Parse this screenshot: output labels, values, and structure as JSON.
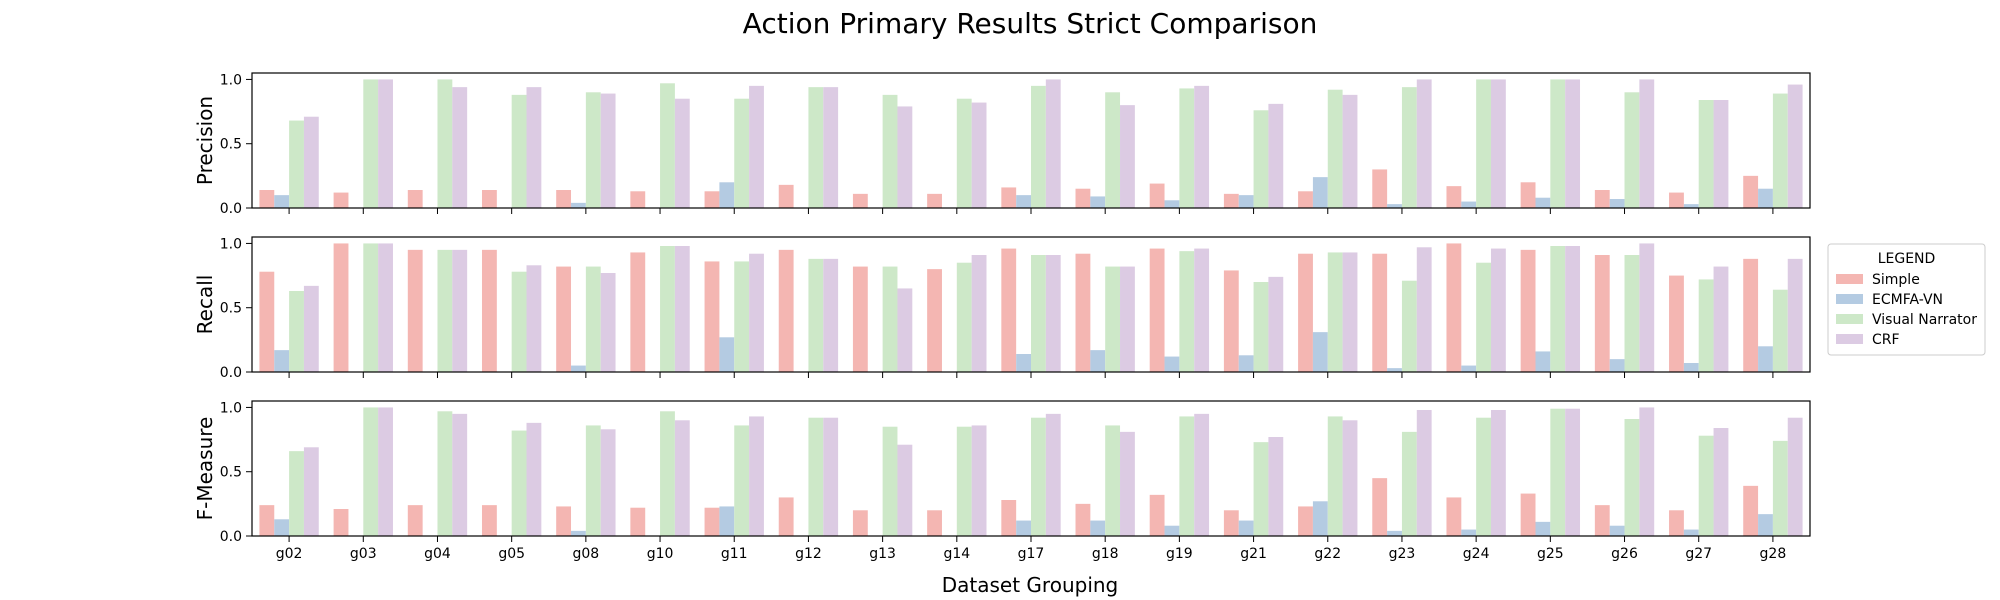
{
  "chart_data": {
    "type": "bar",
    "title": "Action Primary Results Strict Comparison",
    "xlabel": "Dataset Grouping",
    "categories": [
      "g02",
      "g03",
      "g04",
      "g05",
      "g08",
      "g10",
      "g11",
      "g12",
      "g13",
      "g14",
      "g17",
      "g18",
      "g19",
      "g21",
      "g22",
      "g23",
      "g24",
      "g25",
      "g26",
      "g27",
      "g28"
    ],
    "ylim": [
      0,
      1.05
    ],
    "yticks": [
      "0.0",
      "0.5",
      "1.0"
    ],
    "grid": false,
    "legend": {
      "title": "LEGEND",
      "placement": "right",
      "entries": [
        "Simple",
        "ECMFA-VN",
        "Visual Narrator",
        "CRF"
      ],
      "colors": [
        "#f4b6b2",
        "#b4cbe2",
        "#cde8c8",
        "#dccbe3"
      ]
    },
    "panels": [
      {
        "ylabel": "Precision",
        "series": [
          {
            "name": "Simple",
            "values": [
              0.14,
              0.12,
              0.14,
              0.14,
              0.14,
              0.13,
              0.13,
              0.18,
              0.11,
              0.11,
              0.16,
              0.15,
              0.19,
              0.11,
              0.13,
              0.3,
              0.17,
              0.2,
              0.14,
              0.12,
              0.25
            ]
          },
          {
            "name": "ECMFA-VN",
            "values": [
              0.1,
              0,
              0,
              0,
              0.04,
              0,
              0.2,
              0,
              0,
              0,
              0.1,
              0.09,
              0.06,
              0.1,
              0.24,
              0.03,
              0.05,
              0.08,
              0.07,
              0.03,
              0.15
            ]
          },
          {
            "name": "Visual Narrator",
            "values": [
              0.68,
              1.0,
              1.0,
              0.88,
              0.9,
              0.97,
              0.85,
              0.94,
              0.88,
              0.85,
              0.95,
              0.9,
              0.93,
              0.76,
              0.92,
              0.94,
              1.0,
              1.0,
              0.9,
              0.84,
              0.89
            ]
          },
          {
            "name": "CRF",
            "values": [
              0.71,
              1.0,
              0.94,
              0.94,
              0.89,
              0.85,
              0.95,
              0.94,
              0.79,
              0.82,
              1.0,
              0.8,
              0.95,
              0.81,
              0.88,
              1.0,
              1.0,
              1.0,
              1.0,
              0.84,
              0.96
            ]
          }
        ]
      },
      {
        "ylabel": "Recall",
        "series": [
          {
            "name": "Simple",
            "values": [
              0.78,
              1.0,
              0.95,
              0.95,
              0.82,
              0.93,
              0.86,
              0.95,
              0.82,
              0.8,
              0.96,
              0.92,
              0.96,
              0.79,
              0.92,
              0.92,
              1.0,
              0.95,
              0.91,
              0.75,
              0.88
            ]
          },
          {
            "name": "ECMFA-VN",
            "values": [
              0.17,
              0,
              0,
              0,
              0.05,
              0,
              0.27,
              0,
              0,
              0,
              0.14,
              0.17,
              0.12,
              0.13,
              0.31,
              0.03,
              0.05,
              0.16,
              0.1,
              0.07,
              0.2
            ]
          },
          {
            "name": "Visual Narrator",
            "values": [
              0.63,
              1.0,
              0.95,
              0.78,
              0.82,
              0.98,
              0.86,
              0.88,
              0.82,
              0.85,
              0.91,
              0.82,
              0.94,
              0.7,
              0.93,
              0.71,
              0.85,
              0.98,
              0.91,
              0.72,
              0.64
            ]
          },
          {
            "name": "CRF",
            "values": [
              0.67,
              1.0,
              0.95,
              0.83,
              0.77,
              0.98,
              0.92,
              0.88,
              0.65,
              0.91,
              0.91,
              0.82,
              0.96,
              0.74,
              0.93,
              0.97,
              0.96,
              0.98,
              1.0,
              0.82,
              0.88
            ]
          }
        ]
      },
      {
        "ylabel": "F-Measure",
        "series": [
          {
            "name": "Simple",
            "values": [
              0.24,
              0.21,
              0.24,
              0.24,
              0.23,
              0.22,
              0.22,
              0.3,
              0.2,
              0.2,
              0.28,
              0.25,
              0.32,
              0.2,
              0.23,
              0.45,
              0.3,
              0.33,
              0.24,
              0.2,
              0.39
            ]
          },
          {
            "name": "ECMFA-VN",
            "values": [
              0.13,
              0,
              0,
              0,
              0.04,
              0,
              0.23,
              0,
              0,
              0,
              0.12,
              0.12,
              0.08,
              0.12,
              0.27,
              0.04,
              0.05,
              0.11,
              0.08,
              0.05,
              0.17
            ]
          },
          {
            "name": "Visual Narrator",
            "values": [
              0.66,
              1.0,
              0.97,
              0.82,
              0.86,
              0.97,
              0.86,
              0.92,
              0.85,
              0.85,
              0.92,
              0.86,
              0.93,
              0.73,
              0.93,
              0.81,
              0.92,
              0.99,
              0.91,
              0.78,
              0.74
            ]
          },
          {
            "name": "CRF",
            "values": [
              0.69,
              1.0,
              0.95,
              0.88,
              0.83,
              0.9,
              0.93,
              0.92,
              0.71,
              0.86,
              0.95,
              0.81,
              0.95,
              0.77,
              0.9,
              0.98,
              0.98,
              0.99,
              1.0,
              0.84,
              0.92
            ]
          }
        ]
      }
    ]
  }
}
